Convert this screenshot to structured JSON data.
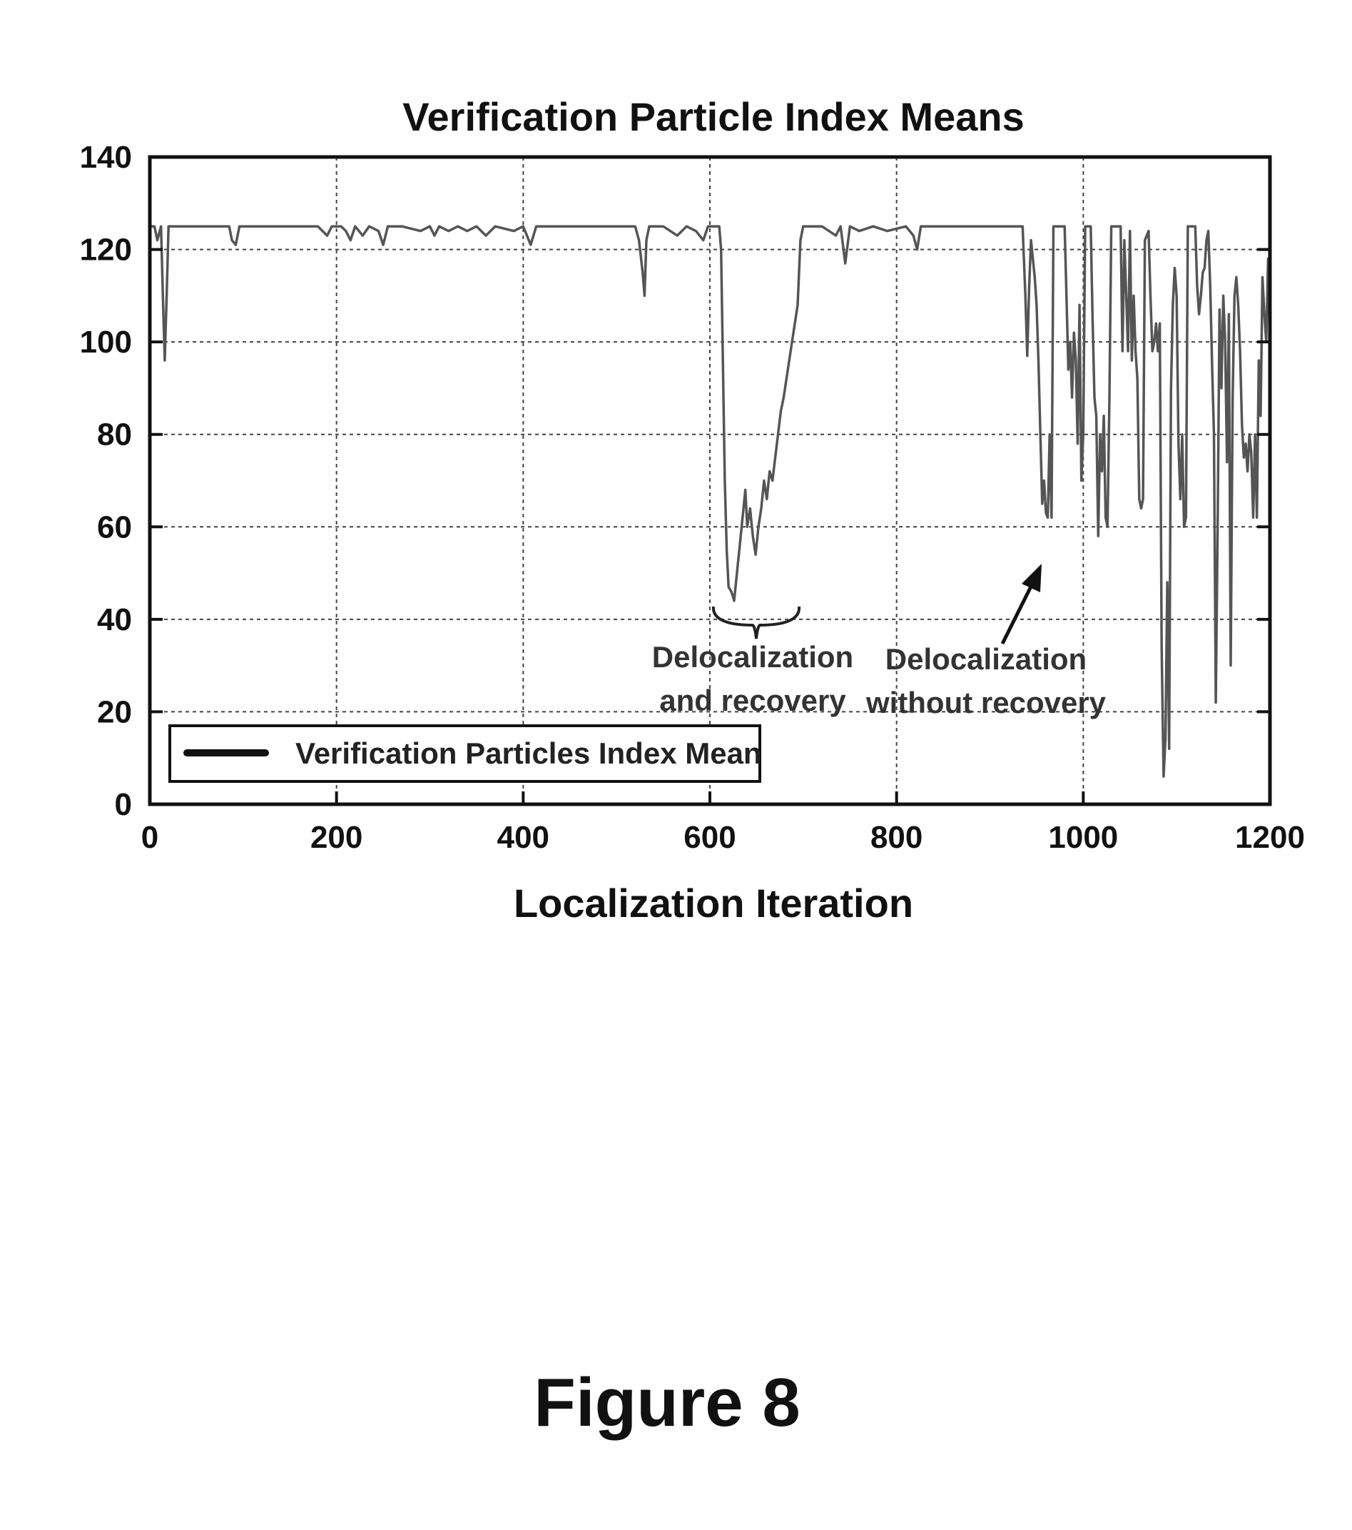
{
  "figure_label": "Figure 8",
  "chart_data": {
    "type": "line",
    "title": "Verification Particle Index Means",
    "xlabel": "Localization Iteration",
    "ylabel": "",
    "xlim": [
      0,
      1200
    ],
    "ylim": [
      0,
      140
    ],
    "xticks": [
      0,
      200,
      400,
      600,
      800,
      1000,
      1200
    ],
    "yticks": [
      0,
      20,
      40,
      60,
      80,
      100,
      120,
      140
    ],
    "grid": true,
    "legend_position": "bottom-left",
    "line_color": "#555555",
    "series": [
      {
        "name": "Verification Particles Index Mean",
        "points": [
          [
            0,
            125
          ],
          [
            5,
            125
          ],
          [
            8,
            122
          ],
          [
            12,
            125
          ],
          [
            14,
            110
          ],
          [
            16,
            96
          ],
          [
            18,
            110
          ],
          [
            20,
            125
          ],
          [
            30,
            125
          ],
          [
            60,
            125
          ],
          [
            85,
            125
          ],
          [
            88,
            122
          ],
          [
            92,
            121
          ],
          [
            96,
            125
          ],
          [
            120,
            125
          ],
          [
            150,
            125
          ],
          [
            180,
            125
          ],
          [
            190,
            123
          ],
          [
            195,
            125
          ],
          [
            205,
            125
          ],
          [
            210,
            124
          ],
          [
            215,
            122
          ],
          [
            220,
            125
          ],
          [
            228,
            123
          ],
          [
            235,
            125
          ],
          [
            245,
            124
          ],
          [
            250,
            121
          ],
          [
            255,
            125
          ],
          [
            270,
            125
          ],
          [
            290,
            124
          ],
          [
            300,
            125
          ],
          [
            305,
            123
          ],
          [
            310,
            125
          ],
          [
            320,
            124
          ],
          [
            330,
            125
          ],
          [
            340,
            124
          ],
          [
            350,
            125
          ],
          [
            360,
            123
          ],
          [
            370,
            125
          ],
          [
            390,
            124
          ],
          [
            400,
            125
          ],
          [
            408,
            121
          ],
          [
            414,
            125
          ],
          [
            440,
            125
          ],
          [
            470,
            125
          ],
          [
            500,
            125
          ],
          [
            520,
            125
          ],
          [
            524,
            122
          ],
          [
            528,
            115
          ],
          [
            530,
            110
          ],
          [
            532,
            122
          ],
          [
            535,
            125
          ],
          [
            550,
            125
          ],
          [
            565,
            123
          ],
          [
            575,
            125
          ],
          [
            585,
            124
          ],
          [
            593,
            122
          ],
          [
            598,
            125
          ],
          [
            610,
            125
          ],
          [
            612,
            120
          ],
          [
            614,
            95
          ],
          [
            616,
            70
          ],
          [
            618,
            55
          ],
          [
            620,
            47
          ],
          [
            623,
            46
          ],
          [
            626,
            44
          ],
          [
            629,
            50
          ],
          [
            632,
            56
          ],
          [
            635,
            62
          ],
          [
            638,
            68
          ],
          [
            640,
            60
          ],
          [
            643,
            64
          ],
          [
            646,
            58
          ],
          [
            649,
            54
          ],
          [
            652,
            60
          ],
          [
            655,
            64
          ],
          [
            658,
            70
          ],
          [
            661,
            66
          ],
          [
            664,
            72
          ],
          [
            667,
            70
          ],
          [
            670,
            75
          ],
          [
            673,
            80
          ],
          [
            676,
            85
          ],
          [
            679,
            88
          ],
          [
            682,
            92
          ],
          [
            685,
            96
          ],
          [
            688,
            100
          ],
          [
            691,
            104
          ],
          [
            694,
            108
          ],
          [
            697,
            122
          ],
          [
            700,
            125
          ],
          [
            720,
            125
          ],
          [
            735,
            123
          ],
          [
            740,
            125
          ],
          [
            745,
            117
          ],
          [
            750,
            125
          ],
          [
            760,
            124
          ],
          [
            775,
            125
          ],
          [
            790,
            124
          ],
          [
            810,
            125
          ],
          [
            818,
            123
          ],
          [
            822,
            120
          ],
          [
            826,
            125
          ],
          [
            850,
            125
          ],
          [
            900,
            125
          ],
          [
            935,
            125
          ],
          [
            938,
            110
          ],
          [
            940,
            97
          ],
          [
            942,
            112
          ],
          [
            944,
            122
          ],
          [
            946,
            118
          ],
          [
            948,
            114
          ],
          [
            950,
            108
          ],
          [
            952,
            96
          ],
          [
            954,
            80
          ],
          [
            956,
            65
          ],
          [
            958,
            70
          ],
          [
            960,
            63
          ],
          [
            962,
            62
          ],
          [
            964,
            80
          ],
          [
            966,
            62
          ],
          [
            968,
            125
          ],
          [
            980,
            125
          ],
          [
            982,
            110
          ],
          [
            984,
            94
          ],
          [
            986,
            100
          ],
          [
            988,
            88
          ],
          [
            990,
            102
          ],
          [
            992,
            96
          ],
          [
            994,
            78
          ],
          [
            996,
            108
          ],
          [
            998,
            70
          ],
          [
            1000,
            80
          ],
          [
            1002,
            125
          ],
          [
            1008,
            125
          ],
          [
            1010,
            105
          ],
          [
            1012,
            88
          ],
          [
            1014,
            84
          ],
          [
            1016,
            58
          ],
          [
            1018,
            80
          ],
          [
            1020,
            72
          ],
          [
            1022,
            84
          ],
          [
            1024,
            62
          ],
          [
            1026,
            60
          ],
          [
            1028,
            88
          ],
          [
            1030,
            125
          ],
          [
            1040,
            125
          ],
          [
            1042,
            98
          ],
          [
            1044,
            122
          ],
          [
            1046,
            110
          ],
          [
            1048,
            98
          ],
          [
            1050,
            124
          ],
          [
            1052,
            96
          ],
          [
            1054,
            110
          ],
          [
            1056,
            98
          ],
          [
            1058,
            92
          ],
          [
            1060,
            66
          ],
          [
            1062,
            64
          ],
          [
            1064,
            66
          ],
          [
            1066,
            122
          ],
          [
            1070,
            124
          ],
          [
            1072,
            110
          ],
          [
            1074,
            98
          ],
          [
            1076,
            100
          ],
          [
            1078,
            104
          ],
          [
            1080,
            98
          ],
          [
            1082,
            104
          ],
          [
            1084,
            34
          ],
          [
            1086,
            6
          ],
          [
            1088,
            14
          ],
          [
            1090,
            48
          ],
          [
            1092,
            12
          ],
          [
            1094,
            90
          ],
          [
            1096,
            108
          ],
          [
            1098,
            116
          ],
          [
            1100,
            110
          ],
          [
            1102,
            78
          ],
          [
            1104,
            66
          ],
          [
            1106,
            80
          ],
          [
            1108,
            60
          ],
          [
            1110,
            62
          ],
          [
            1112,
            125
          ],
          [
            1120,
            125
          ],
          [
            1122,
            112
          ],
          [
            1124,
            106
          ],
          [
            1126,
            110
          ],
          [
            1128,
            115
          ],
          [
            1130,
            116
          ],
          [
            1132,
            122
          ],
          [
            1134,
            124
          ],
          [
            1136,
            112
          ],
          [
            1138,
            95
          ],
          [
            1140,
            80
          ],
          [
            1142,
            22
          ],
          [
            1144,
            60
          ],
          [
            1146,
            107
          ],
          [
            1148,
            90
          ],
          [
            1150,
            110
          ],
          [
            1152,
            100
          ],
          [
            1154,
            74
          ],
          [
            1156,
            106
          ],
          [
            1158,
            30
          ],
          [
            1160,
            88
          ],
          [
            1162,
            110
          ],
          [
            1164,
            114
          ],
          [
            1166,
            108
          ],
          [
            1168,
            98
          ],
          [
            1170,
            82
          ],
          [
            1172,
            75
          ],
          [
            1174,
            78
          ],
          [
            1176,
            72
          ],
          [
            1178,
            80
          ],
          [
            1180,
            76
          ],
          [
            1182,
            62
          ],
          [
            1184,
            80
          ],
          [
            1186,
            62
          ],
          [
            1188,
            96
          ],
          [
            1190,
            84
          ],
          [
            1192,
            114
          ],
          [
            1194,
            106
          ],
          [
            1196,
            100
          ],
          [
            1198,
            118
          ],
          [
            1200,
            112
          ]
        ]
      }
    ],
    "annotations": [
      {
        "text_line1": "Delocalization",
        "text_line2": "and recovery",
        "marker": "brace",
        "x_range": [
          605,
          700
        ]
      },
      {
        "text_line1": "Delocalization",
        "text_line2": "without recovery",
        "marker": "arrow",
        "target": [
          955,
          53
        ]
      }
    ]
  }
}
